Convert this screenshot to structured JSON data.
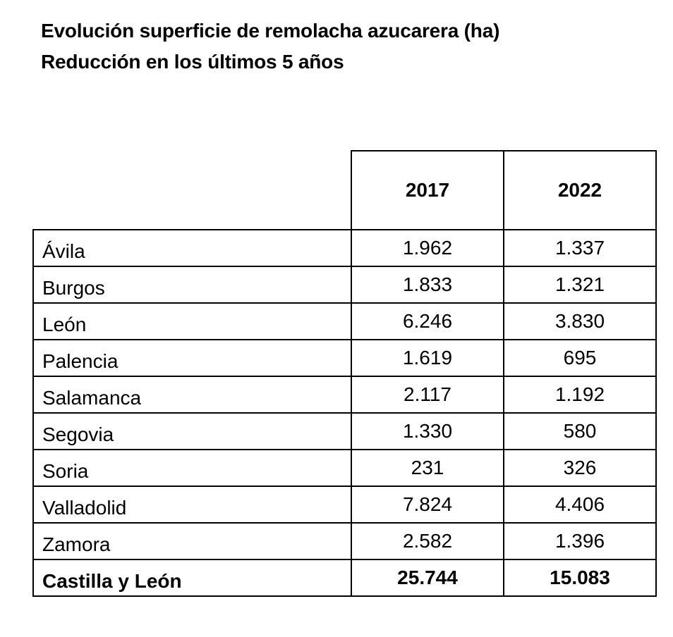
{
  "title": {
    "line1": "Evolución superficie de remolacha azucarera (ha)",
    "line2": "Reducción en los últimos 5 años"
  },
  "table": {
    "columns": [
      "",
      "2017",
      "2022"
    ],
    "rows": [
      {
        "name": "Ávila",
        "y2017": "1.962",
        "y2022": "1.337"
      },
      {
        "name": "Burgos",
        "y2017": "1.833",
        "y2022": "1.321"
      },
      {
        "name": "León",
        "y2017": "6.246",
        "y2022": "3.830"
      },
      {
        "name": "Palencia",
        "y2017": "1.619",
        "y2022": "695"
      },
      {
        "name": "Salamanca",
        "y2017": "2.117",
        "y2022": "1.192"
      },
      {
        "name": "Segovia",
        "y2017": "1.330",
        "y2022": "580"
      },
      {
        "name": "Soria",
        "y2017": "231",
        "y2022": "326"
      },
      {
        "name": "Valladolid",
        "y2017": "7.824",
        "y2022": "4.406"
      },
      {
        "name": "Zamora",
        "y2017": "2.582",
        "y2022": "1.396"
      }
    ],
    "total": {
      "name": "Castilla y León",
      "y2017": "25.744",
      "y2022": "15.083"
    }
  }
}
